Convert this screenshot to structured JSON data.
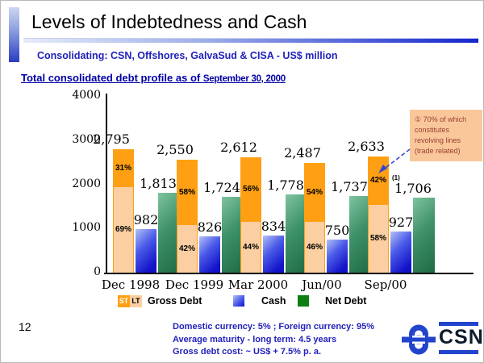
{
  "slide": {
    "title": "Levels of Indebtedness and Cash",
    "subtitle": "Consolidating: CSN, Offshores, GalvaSud & CISA - US$ million",
    "heading": "Total consolidated debt profile as of ",
    "heading_date": "September 30, 2000",
    "page_number": "12",
    "footer_lines": [
      "Domestic currency: 5% ; Foreign currency: 95%",
      "Average maturity - long term: 4.5 years",
      "Gross debt cost: ~ US$ + 7.5% p. a."
    ],
    "logo": {
      "text": "CSN"
    }
  },
  "chart_data": {
    "type": "bar",
    "title": "Total consolidated debt profile as of September 30, 2000",
    "categories": [
      "Dec 1998",
      "Dec 1999",
      "Mar 2000",
      "Jun/00",
      "Sep/00"
    ],
    "series": [
      {
        "name": "Gross Debt",
        "values": [
          2795,
          2550,
          2612,
          2487,
          2633
        ],
        "labels": [
          "2,795",
          "2,550",
          "2,612",
          "2,487",
          "2,633"
        ]
      },
      {
        "name": "Cash",
        "values": [
          982,
          826,
          834,
          750,
          927
        ],
        "labels": [
          "982",
          "826",
          "834",
          "750",
          "927"
        ]
      },
      {
        "name": "Net Debt",
        "values": [
          1813,
          1724,
          1778,
          1737,
          1706
        ],
        "labels": [
          "1,813",
          "1,724",
          "1,778",
          "1,737",
          "1,706"
        ]
      }
    ],
    "st_pct": [
      31,
      58,
      56,
      54,
      42
    ],
    "lt_pct": [
      69,
      42,
      44,
      46,
      58
    ],
    "footnote_marker": "(1)",
    "footnote_on_category_index": 4,
    "ylim": [
      0,
      4000
    ],
    "yticks": [
      4000,
      3000,
      2000,
      1000,
      0
    ],
    "grid": "off",
    "legend_position": "bottom",
    "legend": {
      "st": "ST",
      "lt": "LT",
      "gross": "Gross Debt",
      "cash": "Cash",
      "net": "Net Debt"
    },
    "annotation": {
      "marker": "①",
      "text": " 70% of which constitutes revolving lines (trade related)"
    }
  },
  "colors": {
    "text_blue": "#2121bb",
    "heading_blue": "#0000a6",
    "st_orange": "#ffa014",
    "lt_peach": "#fbcfa2",
    "cash_blue_light": "#b4c0f7",
    "cash_blue_dark": "#1212c8",
    "net_green_light": "#7fc4a0",
    "net_green_dark": "#1e6b44",
    "legend_green": "#0e7e12",
    "annotation_bg": "#fac79b",
    "annotation_text": "#994030",
    "logo_blue": "#2244cc",
    "logo_navy": "#0d1b2a"
  }
}
